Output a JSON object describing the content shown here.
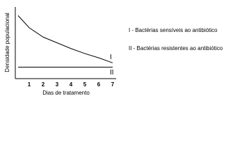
{
  "chart_data": {
    "type": "line",
    "ylabel": "Densidade populacional",
    "xlabel": "Dias de tratamento",
    "x": [
      0.2,
      1,
      2,
      3,
      4,
      5,
      6,
      7
    ],
    "series": [
      {
        "name": "I",
        "color": "#000000",
        "values": [
          88,
          71,
          58,
          50,
          42,
          35,
          29,
          22
        ]
      },
      {
        "name": "II",
        "color": "#000000",
        "values": [
          16,
          16,
          16,
          16,
          16,
          16,
          16,
          16
        ]
      }
    ],
    "xlim": [
      0,
      7
    ],
    "ylim": [
      0,
      100
    ],
    "xticks": [
      1,
      2,
      3,
      4,
      5,
      6,
      7
    ],
    "annotations": [
      "I - Bactérias sensíveis ao antibiótico",
      "II - Bactérias resistentes ao antibiótico"
    ]
  }
}
